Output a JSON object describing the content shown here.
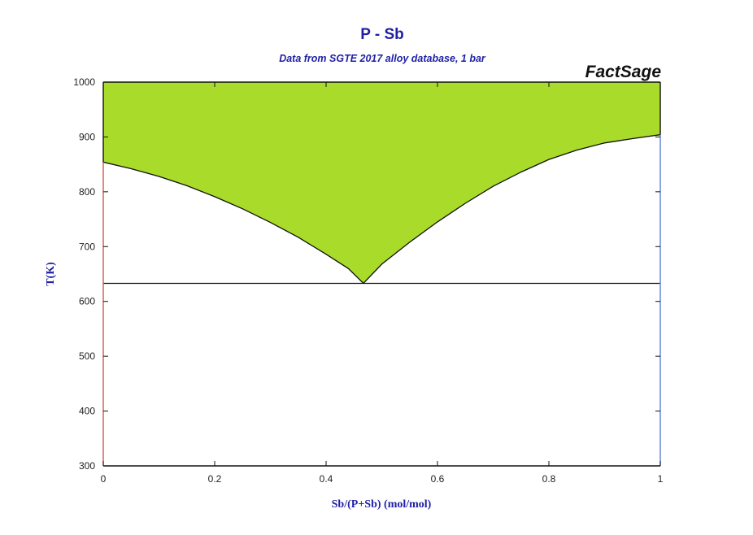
{
  "chart_data": {
    "type": "area",
    "title": "P - Sb",
    "subtitle": "Data from SGTE 2017 alloy database, 1 bar",
    "brand": "FactSage",
    "xlabel": "Sb/(P+Sb) (mol/mol)",
    "ylabel": "T(K)",
    "xlim": [
      0,
      1
    ],
    "ylim": [
      300,
      1000
    ],
    "x_ticks": [
      0,
      0.2,
      0.4,
      0.6,
      0.8,
      1
    ],
    "x_tick_labels": [
      "0",
      "0.2",
      "0.4",
      "0.6",
      "0.8",
      "1"
    ],
    "y_ticks": [
      300,
      400,
      500,
      600,
      700,
      800,
      900,
      1000
    ],
    "y_tick_labels": [
      "300",
      "400",
      "500",
      "600",
      "700",
      "800",
      "900",
      "1000"
    ],
    "grid": false,
    "liquidus": {
      "x": [
        0,
        0.05,
        0.1,
        0.15,
        0.2,
        0.25,
        0.3,
        0.35,
        0.4,
        0.44,
        0.467,
        0.5,
        0.55,
        0.6,
        0.65,
        0.7,
        0.75,
        0.8,
        0.85,
        0.9,
        0.95,
        1
      ],
      "y": [
        854,
        842,
        828,
        811,
        791,
        769,
        744,
        717,
        686,
        660,
        633,
        668,
        708,
        745,
        779,
        810,
        836,
        859,
        876,
        889,
        897,
        904
      ]
    },
    "eutectic": {
      "x": 0.467,
      "T": 633
    },
    "colors": {
      "title": "#1f1fa6",
      "liquid_fill": "#a8db2a",
      "line": "#111111",
      "left_axis": "#d9534f",
      "right_axis": "#5b7fd4"
    }
  }
}
